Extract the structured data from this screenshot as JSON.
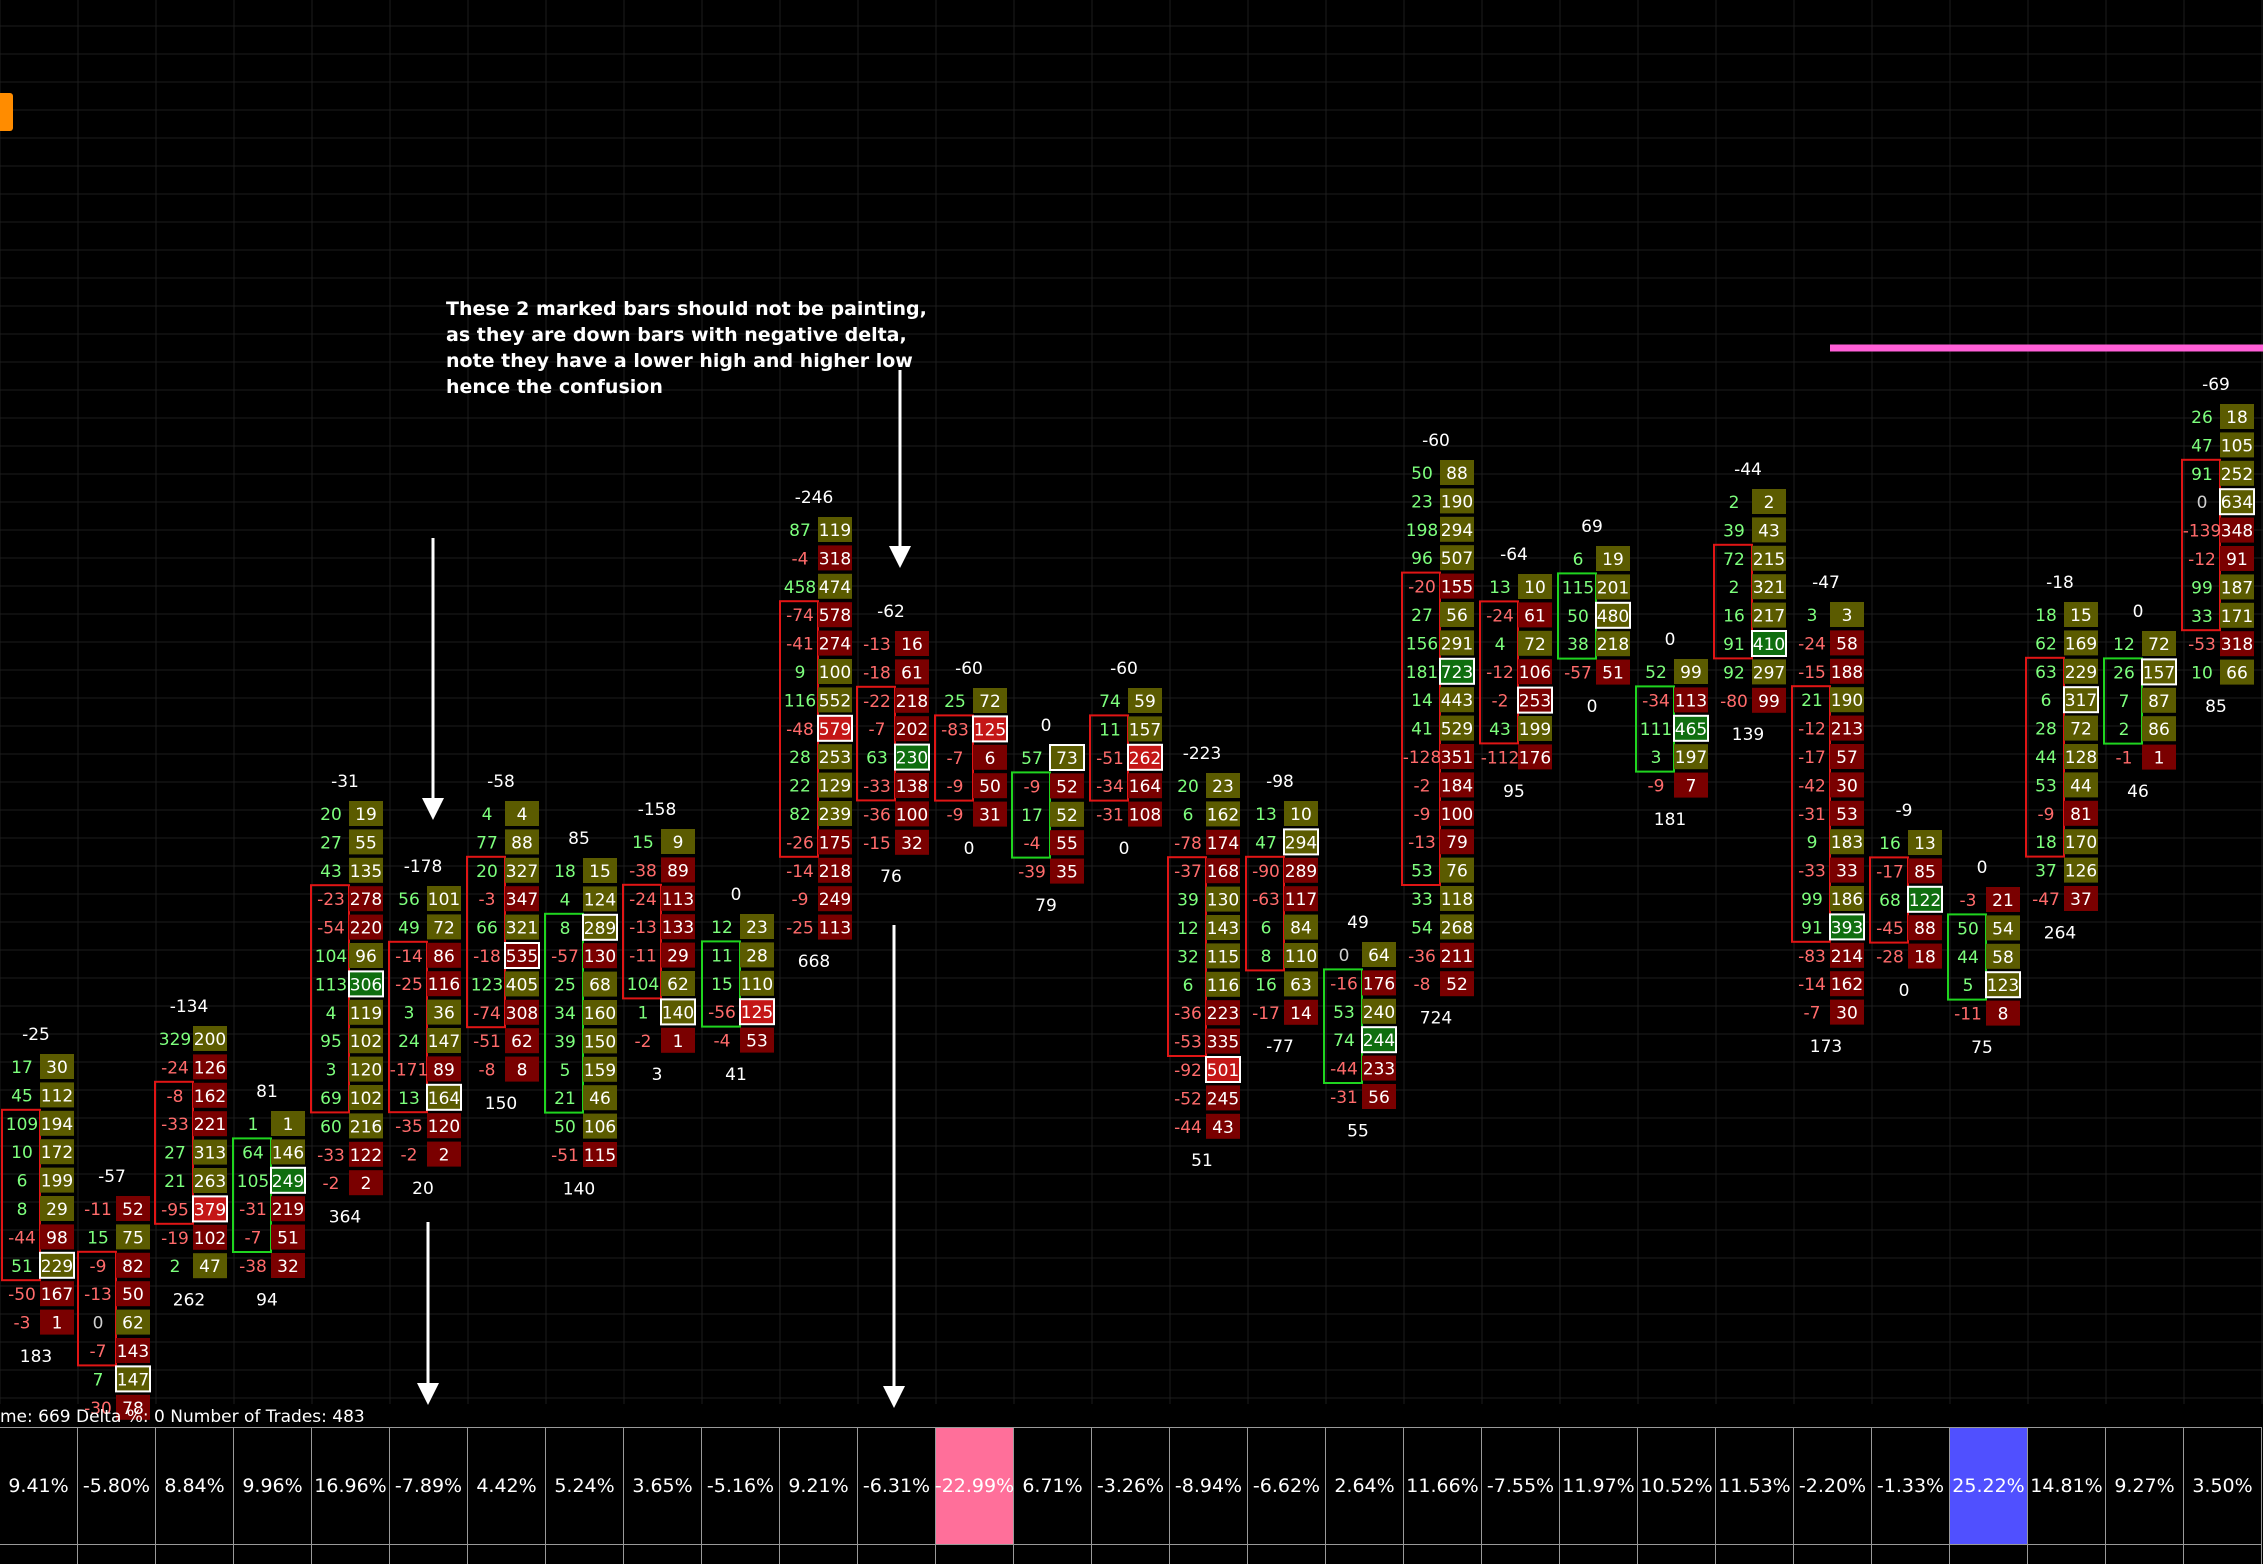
{
  "annotation": {
    "lines": [
      "These 2 marked bars should not be painting,",
      "as they are down bars with negative delta,",
      "note they have a lower high and higher low",
      "hence the confusion"
    ]
  },
  "info_line": "me: 669  Delta %: 0  Number of Trades: 483",
  "colors": {
    "up_bg": "#5b5b00",
    "up_strong_bg": "#0f6e0f",
    "down_bg": "#7a0000",
    "down_strong_bg": "#c41616",
    "buy_text": "#7dff7d",
    "sell_text": "#ff6b6b",
    "up_box": "#1fd41f",
    "down_box": "#e01515",
    "highlight_pink": "#ff6f9a",
    "highlight_blue": "#5050ff",
    "magenta_line": "#ff5fd7"
  },
  "footprint_bars": [
    {
      "id": "b1",
      "delta": -25,
      "volume": 183,
      "cells": [
        [
          17,
          30
        ],
        [
          45,
          112
        ],
        [
          109,
          194
        ],
        [
          10,
          172
        ],
        [
          6,
          199
        ],
        [
          8,
          29
        ],
        [
          -44,
          98
        ],
        [
          51,
          229
        ],
        [
          -50,
          167
        ],
        [
          -3,
          1
        ]
      ]
    },
    {
      "id": "b2",
      "delta": -57,
      "volume": null,
      "cells": [
        [
          -11,
          52
        ],
        [
          15,
          75
        ],
        [
          -9,
          82
        ],
        [
          -13,
          50
        ],
        [
          0,
          62
        ],
        [
          -7,
          143
        ],
        [
          7,
          147
        ],
        [
          -30,
          78
        ]
      ]
    },
    {
      "id": "b3",
      "delta": -134,
      "volume": 262,
      "cells": [
        [
          329,
          200
        ],
        [
          -24,
          126
        ],
        [
          -8,
          162
        ],
        [
          -33,
          221
        ],
        [
          27,
          313
        ],
        [
          21,
          263
        ],
        [
          -95,
          379
        ],
        [
          -19,
          102
        ],
        [
          2,
          47
        ]
      ]
    },
    {
      "id": "b4",
      "delta": 81,
      "volume": 94,
      "cells": [
        [
          1,
          1
        ],
        [
          64,
          146
        ],
        [
          105,
          249
        ],
        [
          -31,
          219
        ],
        [
          -7,
          51
        ],
        [
          -38,
          32
        ]
      ]
    },
    {
      "id": "b5",
      "delta": -31,
      "volume": 364,
      "cells": [
        [
          20,
          19
        ],
        [
          27,
          55
        ],
        [
          43,
          135
        ],
        [
          -23,
          278
        ],
        [
          -54,
          220
        ],
        [
          104,
          96
        ],
        [
          113,
          306
        ],
        [
          4,
          119
        ],
        [
          95,
          102
        ],
        [
          3,
          120
        ],
        [
          69,
          102
        ],
        [
          60,
          216
        ],
        [
          -33,
          122
        ],
        [
          -2,
          2
        ]
      ]
    },
    {
      "id": "b6",
      "delta": -178,
      "volume": 20,
      "cells": [
        [
          56,
          101
        ],
        [
          49,
          72
        ],
        [
          -14,
          86
        ],
        [
          -25,
          116
        ],
        [
          3,
          36
        ],
        [
          24,
          147
        ],
        [
          -171,
          89
        ],
        [
          13,
          164
        ],
        [
          -35,
          120
        ],
        [
          -2,
          2
        ]
      ]
    },
    {
      "id": "b7",
      "delta": -58,
      "volume": 150,
      "cells": [
        [
          4,
          4
        ],
        [
          77,
          88
        ],
        [
          20,
          327
        ],
        [
          -3,
          347
        ],
        [
          66,
          321
        ],
        [
          -18,
          535
        ],
        [
          123,
          405
        ],
        [
          -74,
          308
        ],
        [
          -51,
          62
        ],
        [
          -8,
          8
        ]
      ]
    },
    {
      "id": "b8",
      "delta": 85,
      "volume": 140,
      "cells": [
        [
          18,
          15
        ],
        [
          4,
          124
        ],
        [
          8,
          289
        ],
        [
          -57,
          130
        ],
        [
          25,
          68
        ],
        [
          34,
          160
        ],
        [
          39,
          150
        ],
        [
          5,
          159
        ],
        [
          21,
          46
        ],
        [
          50,
          106
        ],
        [
          -51,
          115
        ]
      ]
    },
    {
      "id": "b9",
      "delta": -158,
      "volume": 3,
      "cells": [
        [
          15,
          9
        ],
        [
          -38,
          89
        ],
        [
          -24,
          113
        ],
        [
          -13,
          133
        ],
        [
          -11,
          29
        ],
        [
          104,
          62
        ],
        [
          1,
          140
        ],
        [
          -2,
          1
        ]
      ]
    },
    {
      "id": "b10",
      "delta": 0,
      "volume": 41,
      "cells": [
        [
          12,
          23
        ],
        [
          11,
          28
        ],
        [
          15,
          110
        ],
        [
          -56,
          125
        ],
        [
          -4,
          53
        ]
      ]
    },
    {
      "id": "b11",
      "delta": -246,
      "volume": 668,
      "cells": [
        [
          87,
          119
        ],
        [
          -4,
          318
        ],
        [
          458,
          474
        ],
        [
          -74,
          578
        ],
        [
          -41,
          274
        ],
        [
          9,
          100
        ],
        [
          116,
          552
        ],
        [
          -48,
          579
        ],
        [
          28,
          253
        ],
        [
          22,
          129
        ],
        [
          82,
          239
        ],
        [
          -26,
          175
        ],
        [
          -14,
          218
        ],
        [
          -9,
          249
        ],
        [
          -25,
          113
        ]
      ]
    },
    {
      "id": "b12",
      "delta": -62,
      "volume": 76,
      "cells": [
        [
          -13,
          16
        ],
        [
          -18,
          61
        ],
        [
          -22,
          218
        ],
        [
          -7,
          202
        ],
        [
          63,
          230
        ],
        [
          -33,
          138
        ],
        [
          -36,
          100
        ],
        [
          -15,
          32
        ]
      ]
    },
    {
      "id": "b13",
      "delta": -60,
      "volume": 0,
      "cells": [
        [
          25,
          72
        ],
        [
          -83,
          125
        ],
        [
          -7,
          6
        ],
        [
          -9,
          50
        ],
        [
          -9,
          31
        ]
      ]
    },
    {
      "id": "b14",
      "delta": 0,
      "volume": 79,
      "cells": [
        [
          57,
          73
        ],
        [
          -9,
          52
        ],
        [
          17,
          52
        ],
        [
          -4,
          55
        ],
        [
          -39,
          35
        ]
      ]
    },
    {
      "id": "b15",
      "delta": -60,
      "volume": 0,
      "cells": [
        [
          74,
          59
        ],
        [
          11,
          157
        ],
        [
          -51,
          262
        ],
        [
          -34,
          164
        ],
        [
          -31,
          108
        ]
      ]
    },
    {
      "id": "b16",
      "delta": -223,
      "volume": 51,
      "cells": [
        [
          20,
          23
        ],
        [
          6,
          162
        ],
        [
          -78,
          174
        ],
        [
          -37,
          168
        ],
        [
          39,
          130
        ],
        [
          12,
          143
        ],
        [
          32,
          115
        ],
        [
          6,
          116
        ],
        [
          -36,
          223
        ],
        [
          -53,
          335
        ],
        [
          -92,
          501
        ],
        [
          -52,
          245
        ],
        [
          -44,
          43
        ]
      ]
    },
    {
      "id": "b17",
      "delta": -98,
      "volume": -77,
      "cells": [
        [
          13,
          10
        ],
        [
          47,
          294
        ],
        [
          -90,
          289
        ],
        [
          -63,
          117
        ],
        [
          6,
          84
        ],
        [
          8,
          110
        ],
        [
          16,
          63
        ],
        [
          -17,
          14
        ]
      ]
    },
    {
      "id": "b18",
      "delta": 49,
      "volume": 55,
      "cells": [
        [
          0,
          64
        ],
        [
          -16,
          176
        ],
        [
          53,
          240
        ],
        [
          74,
          244
        ],
        [
          -44,
          233
        ],
        [
          -31,
          56
        ]
      ]
    },
    {
      "id": "b19",
      "delta": -60,
      "volume": 724,
      "cells": [
        [
          50,
          88
        ],
        [
          23,
          190
        ],
        [
          198,
          294
        ],
        [
          96,
          507
        ],
        [
          -20,
          155
        ],
        [
          27,
          56
        ],
        [
          156,
          291
        ],
        [
          181,
          723
        ],
        [
          14,
          443
        ],
        [
          41,
          529
        ],
        [
          -128,
          351
        ],
        [
          -2,
          184
        ],
        [
          -9,
          100
        ],
        [
          -13,
          79
        ],
        [
          53,
          76
        ],
        [
          33,
          118
        ],
        [
          54,
          268
        ],
        [
          -36,
          211
        ],
        [
          -8,
          52
        ]
      ]
    },
    {
      "id": "b20",
      "delta": -64,
      "volume": 95,
      "cells": [
        [
          13,
          10
        ],
        [
          -24,
          61
        ],
        [
          4,
          72
        ],
        [
          -12,
          106
        ],
        [
          -2,
          253
        ],
        [
          43,
          199
        ],
        [
          -112,
          176
        ]
      ]
    },
    {
      "id": "b21",
      "delta": 69,
      "volume": 0,
      "cells": [
        [
          6,
          19
        ],
        [
          115,
          201
        ],
        [
          50,
          480
        ],
        [
          38,
          218
        ],
        [
          -57,
          51
        ]
      ]
    },
    {
      "id": "b22",
      "delta": 0,
      "volume": 181,
      "cells": [
        [
          52,
          99
        ],
        [
          -34,
          113
        ],
        [
          111,
          465
        ],
        [
          3,
          197
        ],
        [
          -9,
          7
        ]
      ]
    },
    {
      "id": "b23",
      "delta": -44,
      "volume": 139,
      "cells": [
        [
          2,
          2
        ],
        [
          39,
          43
        ],
        [
          72,
          215
        ],
        [
          2,
          321
        ],
        [
          16,
          217
        ],
        [
          91,
          410
        ],
        [
          92,
          297
        ],
        [
          -80,
          99
        ]
      ]
    },
    {
      "id": "b24",
      "delta": -47,
      "volume": 173,
      "cells": [
        [
          3,
          3
        ],
        [
          -24,
          58
        ],
        [
          -15,
          188
        ],
        [
          21,
          190
        ],
        [
          -12,
          213
        ],
        [
          -17,
          57
        ],
        [
          -42,
          30
        ],
        [
          -31,
          53
        ],
        [
          9,
          183
        ],
        [
          -33,
          33
        ],
        [
          99,
          186
        ],
        [
          91,
          393
        ],
        [
          -83,
          214
        ],
        [
          -14,
          162
        ],
        [
          -7,
          30
        ]
      ]
    },
    {
      "id": "b25",
      "delta": -9,
      "volume": 0,
      "cells": [
        [
          16,
          13
        ],
        [
          -17,
          85
        ],
        [
          68,
          122
        ],
        [
          -45,
          88
        ],
        [
          -28,
          18
        ]
      ]
    },
    {
      "id": "b26",
      "delta": 0,
      "volume": 75,
      "cells": [
        [
          -3,
          21
        ],
        [
          50,
          54
        ],
        [
          44,
          58
        ],
        [
          5,
          123
        ],
        [
          -11,
          8
        ]
      ]
    },
    {
      "id": "b27",
      "delta": -18,
      "volume": 264,
      "cells": [
        [
          18,
          15
        ],
        [
          62,
          169
        ],
        [
          63,
          229
        ],
        [
          6,
          317
        ],
        [
          28,
          72
        ],
        [
          44,
          128
        ],
        [
          53,
          44
        ],
        [
          -9,
          81
        ],
        [
          18,
          170
        ],
        [
          37,
          126
        ],
        [
          -47,
          37
        ]
      ]
    },
    {
      "id": "b28",
      "delta": 0,
      "volume": 46,
      "cells": [
        [
          12,
          72
        ],
        [
          26,
          157
        ],
        [
          7,
          87
        ],
        [
          2,
          86
        ],
        [
          -1,
          1
        ]
      ]
    },
    {
      "id": "b29",
      "delta": -69,
      "volume": 85,
      "cells": [
        [
          26,
          18
        ],
        [
          47,
          105
        ],
        [
          91,
          252
        ],
        [
          0,
          634
        ],
        [
          -139,
          348
        ],
        [
          -12,
          91
        ],
        [
          99,
          187
        ],
        [
          33,
          171
        ],
        [
          -53,
          318
        ],
        [
          10,
          66
        ]
      ]
    }
  ],
  "delta_percent_strip": [
    {
      "value": "9.41%"
    },
    {
      "value": "-5.80%"
    },
    {
      "value": "8.84%"
    },
    {
      "value": "9.96%"
    },
    {
      "value": "16.96%"
    },
    {
      "value": "-7.89%"
    },
    {
      "value": "4.42%"
    },
    {
      "value": "5.24%"
    },
    {
      "value": "3.65%"
    },
    {
      "value": "-5.16%"
    },
    {
      "value": "9.21%"
    },
    {
      "value": "-6.31%"
    },
    {
      "value": "-22.99%",
      "highlight": "pink"
    },
    {
      "value": "6.71%"
    },
    {
      "value": "-3.26%"
    },
    {
      "value": "-8.94%"
    },
    {
      "value": "-6.62%"
    },
    {
      "value": "2.64%"
    },
    {
      "value": "11.66%"
    },
    {
      "value": "-7.55%"
    },
    {
      "value": "11.97%"
    },
    {
      "value": "10.52%"
    },
    {
      "value": "11.53%"
    },
    {
      "value": "-2.20%"
    },
    {
      "value": "-1.33%"
    },
    {
      "value": "25.22%",
      "highlight": "blue"
    },
    {
      "value": "14.81%"
    },
    {
      "value": "9.27%"
    },
    {
      "value": "3.50%"
    }
  ]
}
